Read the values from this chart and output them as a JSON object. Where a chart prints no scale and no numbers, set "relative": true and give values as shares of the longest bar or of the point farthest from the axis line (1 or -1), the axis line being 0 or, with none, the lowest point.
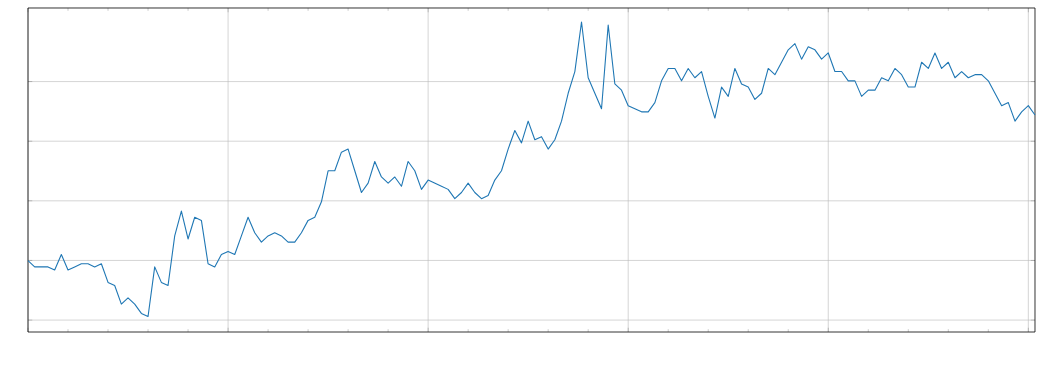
{
  "chart_data": {
    "type": "line",
    "relative": true,
    "color": "#1f77b4",
    "grid": true,
    "marker": "none",
    "line_style": "solid",
    "categories": [
      null,
      null,
      null,
      null,
      null,
      null,
      null,
      null,
      null,
      null,
      null,
      null,
      null,
      null,
      null,
      null,
      null,
      null,
      null,
      null,
      null,
      null,
      null,
      null,
      null,
      null,
      null,
      null,
      null,
      null,
      null,
      null,
      null,
      null,
      null,
      null,
      null,
      null,
      null,
      null,
      null,
      null,
      null,
      null,
      null,
      null,
      null,
      null,
      null,
      null,
      null,
      null,
      null,
      null,
      null,
      null,
      null,
      null,
      null,
      null,
      null,
      null,
      null,
      null,
      null,
      null,
      null,
      null,
      null,
      null,
      null,
      null,
      null,
      null,
      null,
      null,
      null,
      null,
      null,
      null,
      null,
      null,
      null,
      null,
      null,
      null,
      null,
      null,
      null,
      null,
      null,
      null,
      null,
      null,
      null,
      null,
      null,
      null,
      null,
      null,
      null,
      null,
      null,
      null,
      null,
      null,
      null,
      null,
      null,
      null,
      null,
      null,
      null,
      null,
      null,
      null,
      null,
      null,
      null,
      null,
      null,
      null,
      null,
      null,
      null,
      null,
      null,
      null,
      null,
      null,
      null,
      null,
      null,
      null,
      null,
      null,
      null,
      null,
      null,
      null,
      null,
      null,
      null,
      null,
      null,
      null,
      null,
      null,
      null,
      null,
      null,
      null
    ],
    "values": [
      0.23,
      0.21,
      0.21,
      0.21,
      0.2,
      0.25,
      0.2,
      0.21,
      0.22,
      0.22,
      0.21,
      0.22,
      0.16,
      0.15,
      0.09,
      0.11,
      0.09,
      0.06,
      0.05,
      0.21,
      0.16,
      0.15,
      0.31,
      0.39,
      0.3,
      0.37,
      0.36,
      0.22,
      0.21,
      0.25,
      0.26,
      0.25,
      0.31,
      0.37,
      0.32,
      0.29,
      0.31,
      0.32,
      0.31,
      0.29,
      0.29,
      0.32,
      0.36,
      0.37,
      0.42,
      0.52,
      0.52,
      0.58,
      0.59,
      0.52,
      0.45,
      0.48,
      0.55,
      0.5,
      0.48,
      0.5,
      0.47,
      0.55,
      0.52,
      0.46,
      0.49,
      0.48,
      0.47,
      0.46,
      0.43,
      0.45,
      0.48,
      0.45,
      0.43,
      0.44,
      0.49,
      0.52,
      0.59,
      0.65,
      0.61,
      0.68,
      0.62,
      0.63,
      0.59,
      0.62,
      0.68,
      0.77,
      0.84,
      1,
      0.82,
      0.77,
      0.72,
      0.99,
      0.8,
      0.78,
      0.73,
      0.72,
      0.71,
      0.71,
      0.74,
      0.81,
      0.85,
      0.85,
      0.81,
      0.85,
      0.82,
      0.84,
      0.76,
      0.69,
      0.79,
      0.76,
      0.85,
      0.8,
      0.79,
      0.75,
      0.77,
      0.85,
      0.83,
      0.87,
      0.91,
      0.93,
      0.88,
      0.92,
      0.91,
      0.88,
      0.9,
      0.84,
      0.84,
      0.81,
      0.81,
      0.76,
      0.78,
      0.78,
      0.82,
      0.81,
      0.85,
      0.83,
      0.79,
      0.79,
      0.87,
      0.85,
      0.9,
      0.85,
      0.87,
      0.82,
      0.84,
      0.82,
      0.83,
      0.83,
      0.81,
      0.77,
      0.73,
      0.74,
      0.68,
      0.71,
      0.73,
      0.7
    ]
  }
}
